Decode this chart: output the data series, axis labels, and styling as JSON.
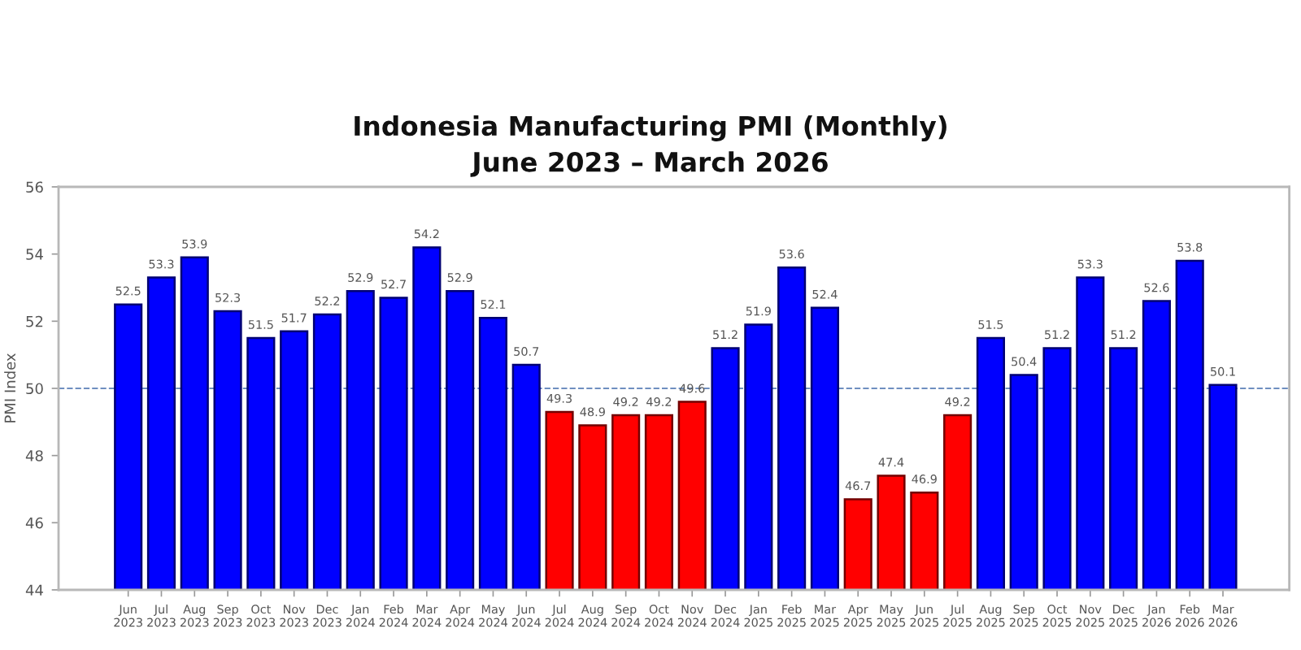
{
  "chart_data": {
    "type": "bar",
    "title": "Indonesia Manufacturing PMI (Monthly)\nJune 2023 – March 2026",
    "ylabel": "PMI Index",
    "categories": [
      "Jun\n2023",
      "Jul\n2023",
      "Aug\n2023",
      "Sep\n2023",
      "Oct\n2023",
      "Nov\n2023",
      "Dec\n2023",
      "Jan\n2024",
      "Feb\n2024",
      "Mar\n2024",
      "Apr\n2024",
      "May\n2024",
      "Jun\n2024",
      "Jul\n2024",
      "Aug\n2024",
      "Sep\n2024",
      "Oct\n2024",
      "Nov\n2024",
      "Dec\n2024",
      "Jan\n2025",
      "Feb\n2025",
      "Mar\n2025",
      "Apr\n2025",
      "May\n2025",
      "Jun\n2025",
      "Jul\n2025",
      "Aug\n2025",
      "Sep\n2025",
      "Oct\n2025",
      "Nov\n2025",
      "Dec\n2025",
      "Jan\n2026",
      "Feb\n2026",
      "Mar\n2026"
    ],
    "values": [
      52.5,
      53.3,
      53.9,
      52.3,
      51.5,
      51.7,
      52.2,
      52.9,
      52.7,
      54.2,
      52.9,
      52.1,
      50.7,
      49.3,
      48.9,
      49.2,
      49.2,
      49.6,
      51.2,
      51.9,
      53.6,
      52.4,
      46.7,
      47.4,
      46.9,
      49.2,
      51.5,
      50.4,
      51.2,
      53.3,
      51.2,
      52.6,
      53.8,
      50.1
    ],
    "colors": [
      "#0000ff",
      "#0000ff",
      "#0000ff",
      "#0000ff",
      "#0000ff",
      "#0000ff",
      "#0000ff",
      "#0000ff",
      "#0000ff",
      "#0000ff",
      "#0000ff",
      "#0000ff",
      "#0000ff",
      "#ff0000",
      "#ff0000",
      "#ff0000",
      "#ff0000",
      "#ff0000",
      "#0000ff",
      "#0000ff",
      "#0000ff",
      "#0000ff",
      "#ff0000",
      "#ff0000",
      "#ff0000",
      "#ff0000",
      "#0000ff",
      "#0000ff",
      "#0000ff",
      "#0000ff",
      "#0000ff",
      "#0000ff",
      "#0000ff",
      "#0000ff"
    ],
    "ylim": [
      44,
      56
    ],
    "yticks": [
      44,
      46,
      48,
      50,
      52,
      54,
      56
    ],
    "ref_lines": [
      {
        "axis": "y",
        "value": 50,
        "color": "#6f8fc0",
        "line_style": "dashed"
      }
    ],
    "data_labels": true
  }
}
